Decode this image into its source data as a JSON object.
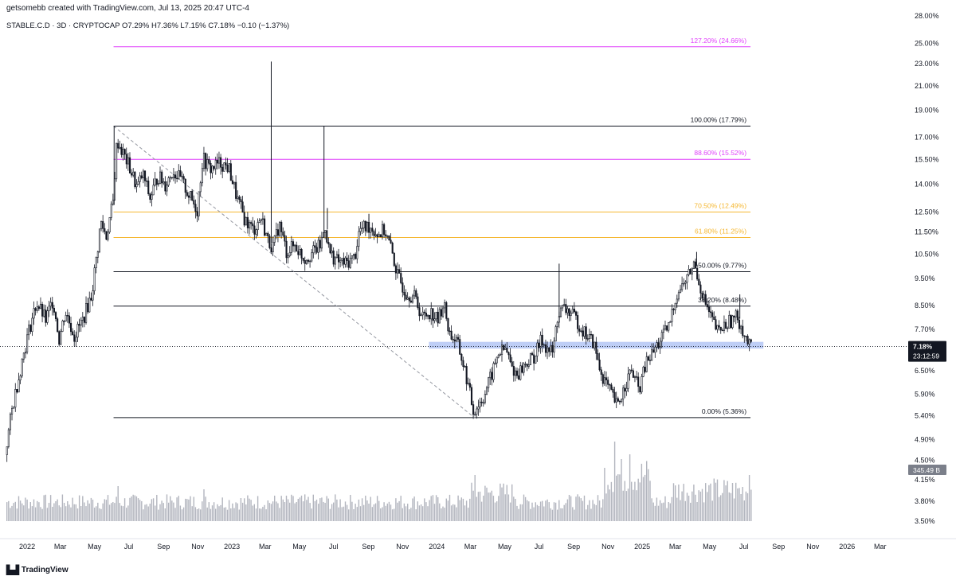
{
  "header": {
    "caption": "getsomebb created with TradingView.com, Jul 13, 2025 20:47 UTC-4",
    "symbol_line": "STABLE.C.D · 3D · CRYPTOCAP  O7.29%  H7.36%  L7.15%  C7.18%  −0.10 (−1.37%)"
  },
  "footer": {
    "brand": "TradingView"
  },
  "colors": {
    "candle": "#131722",
    "volume": "#b2b5be",
    "fib_black": "#131722",
    "fib_magenta": "#e040fb",
    "fib_orange": "#f5b731",
    "zone": "#b3c6f5",
    "price_badge_bg": "#131722",
    "volume_badge_bg": "#7b7f8a"
  },
  "price_badge": {
    "value": "7.18%",
    "countdown": "23:12:59"
  },
  "volume_badge": {
    "value": "345.49 B"
  },
  "chart_data": {
    "type": "candlestick",
    "symbol": "STABLE.C.D",
    "timeframe": "3D",
    "exchange": "CRYPTOCAP",
    "y_scale": "log",
    "ylim": [
      3.5,
      28
    ],
    "x_range": [
      "2021-11-25",
      "2026-04-20"
    ],
    "y_ticks": [
      "28.00%",
      "25.00%",
      "23.00%",
      "21.00%",
      "19.00%",
      "17.00%",
      "15.50%",
      "14.00%",
      "12.50%",
      "11.50%",
      "10.50%",
      "9.50%",
      "8.50%",
      "7.70%",
      "6.50%",
      "5.90%",
      "5.40%",
      "4.90%",
      "4.50%",
      "4.15%",
      "3.80%",
      "3.50%"
    ],
    "y_tick_values": [
      28,
      25,
      23,
      21,
      19,
      17,
      15.5,
      14,
      12.5,
      11.5,
      10.5,
      9.5,
      8.5,
      7.7,
      6.5,
      5.9,
      5.4,
      4.9,
      4.5,
      4.15,
      3.8,
      3.5
    ],
    "x_ticks": [
      {
        "label": "2022",
        "date": "2022-01-01"
      },
      {
        "label": "Mar",
        "date": "2022-03-01"
      },
      {
        "label": "May",
        "date": "2022-05-01"
      },
      {
        "label": "Jul",
        "date": "2022-07-01"
      },
      {
        "label": "Sep",
        "date": "2022-09-01"
      },
      {
        "label": "Nov",
        "date": "2022-11-01"
      },
      {
        "label": "2023",
        "date": "2023-01-01"
      },
      {
        "label": "Mar",
        "date": "2023-03-01"
      },
      {
        "label": "May",
        "date": "2023-05-01"
      },
      {
        "label": "Jul",
        "date": "2023-07-01"
      },
      {
        "label": "Sep",
        "date": "2023-09-01"
      },
      {
        "label": "Nov",
        "date": "2023-11-01"
      },
      {
        "label": "2024",
        "date": "2024-01-01"
      },
      {
        "label": "Mar",
        "date": "2024-03-01"
      },
      {
        "label": "May",
        "date": "2024-05-01"
      },
      {
        "label": "Jul",
        "date": "2024-07-01"
      },
      {
        "label": "Sep",
        "date": "2024-09-01"
      },
      {
        "label": "Nov",
        "date": "2024-11-01"
      },
      {
        "label": "2025",
        "date": "2025-01-01"
      },
      {
        "label": "Mar",
        "date": "2025-03-01"
      },
      {
        "label": "May",
        "date": "2025-05-01"
      },
      {
        "label": "Jul",
        "date": "2025-07-01"
      },
      {
        "label": "Sep",
        "date": "2025-09-01"
      },
      {
        "label": "Nov",
        "date": "2025-11-01"
      },
      {
        "label": "2026",
        "date": "2026-01-01"
      },
      {
        "label": "Mar",
        "date": "2026-03-01"
      }
    ],
    "fib_levels": [
      {
        "label": "127.20% (24.66%)",
        "value": 24.66,
        "color": "#e040fb"
      },
      {
        "label": "100.00% (17.79%)",
        "value": 17.79,
        "color": "#131722"
      },
      {
        "label": "88.60% (15.52%)",
        "value": 15.52,
        "color": "#e040fb"
      },
      {
        "label": "70.50% (12.49%)",
        "value": 12.49,
        "color": "#f5b731"
      },
      {
        "label": "61.80% (11.25%)",
        "value": 11.25,
        "color": "#f5b731"
      },
      {
        "label": "50.00% (9.77%)",
        "value": 9.77,
        "color": "#131722"
      },
      {
        "label": "38.20% (8.48%)",
        "value": 8.48,
        "color": "#131722"
      },
      {
        "label": "0.00% (5.36%)",
        "value": 5.36,
        "color": "#131722"
      }
    ],
    "fib_x_range": [
      "2022-06-04",
      "2025-07-13"
    ],
    "fib_label_x": "2025-07-13",
    "trend_line": {
      "from": {
        "date": "2022-06-04",
        "value": 17.79
      },
      "to": {
        "date": "2024-03-08",
        "value": 5.36
      }
    },
    "support_zone": {
      "from": "2023-12-18",
      "to": "2025-08-05",
      "low": 7.12,
      "high": 7.32
    },
    "current_price": 7.18,
    "price_anchors": [
      [
        "2021-11-25",
        4.6
      ],
      [
        "2021-12-08",
        5.6
      ],
      [
        "2021-12-20",
        6.4
      ],
      [
        "2022-01-05",
        7.6
      ],
      [
        "2022-01-20",
        8.6
      ],
      [
        "2022-02-05",
        8.0
      ],
      [
        "2022-02-18",
        8.7
      ],
      [
        "2022-03-01",
        7.4
      ],
      [
        "2022-03-12",
        8.3
      ],
      [
        "2022-03-28",
        7.5
      ],
      [
        "2022-04-12",
        8.0
      ],
      [
        "2022-04-28",
        8.9
      ],
      [
        "2022-05-08",
        10.6
      ],
      [
        "2022-05-14",
        12.0
      ],
      [
        "2022-05-24",
        11.3
      ],
      [
        "2022-06-05",
        13.0
      ],
      [
        "2022-06-12",
        16.8
      ],
      [
        "2022-06-19",
        16.2
      ],
      [
        "2022-07-02",
        15.2
      ],
      [
        "2022-07-18",
        13.8
      ],
      [
        "2022-07-28",
        14.6
      ],
      [
        "2022-08-10",
        13.2
      ],
      [
        "2022-08-24",
        14.5
      ],
      [
        "2022-09-06",
        14.0
      ],
      [
        "2022-09-20",
        14.8
      ],
      [
        "2022-10-05",
        14.2
      ],
      [
        "2022-10-18",
        13.4
      ],
      [
        "2022-11-02",
        12.6
      ],
      [
        "2022-11-12",
        15.6
      ],
      [
        "2022-11-25",
        14.9
      ],
      [
        "2022-12-12",
        15.3
      ],
      [
        "2022-12-28",
        15.0
      ],
      [
        "2023-01-12",
        13.2
      ],
      [
        "2023-01-26",
        12.1
      ],
      [
        "2023-02-10",
        11.6
      ],
      [
        "2023-02-24",
        12.2
      ],
      [
        "2023-03-08",
        11.1
      ],
      [
        "2023-03-18",
        10.8
      ],
      [
        "2023-03-28",
        11.9
      ],
      [
        "2023-04-10",
        10.6
      ],
      [
        "2023-04-25",
        10.9
      ],
      [
        "2023-05-12",
        10.3
      ],
      [
        "2023-05-28",
        10.6
      ],
      [
        "2023-06-10",
        10.9
      ],
      [
        "2023-06-18",
        11.8
      ],
      [
        "2023-06-25",
        10.6
      ],
      [
        "2023-07-10",
        10.2
      ],
      [
        "2023-07-25",
        10.1
      ],
      [
        "2023-08-10",
        10.4
      ],
      [
        "2023-08-18",
        11.6
      ],
      [
        "2023-09-05",
        11.8
      ],
      [
        "2023-09-20",
        11.4
      ],
      [
        "2023-10-02",
        11.6
      ],
      [
        "2023-10-15",
        10.6
      ],
      [
        "2023-10-25",
        9.6
      ],
      [
        "2023-11-08",
        9.0
      ],
      [
        "2023-11-25",
        8.8
      ],
      [
        "2023-12-08",
        8.1
      ],
      [
        "2023-12-22",
        8.3
      ],
      [
        "2024-01-05",
        8.0
      ],
      [
        "2024-01-15",
        8.6
      ],
      [
        "2024-01-25",
        7.6
      ],
      [
        "2024-02-08",
        7.3
      ],
      [
        "2024-02-22",
        6.5
      ],
      [
        "2024-03-02",
        5.9
      ],
      [
        "2024-03-08",
        5.5
      ],
      [
        "2024-03-25",
        5.8
      ],
      [
        "2024-04-10",
        6.4
      ],
      [
        "2024-04-22",
        7.0
      ],
      [
        "2024-05-05",
        7.1
      ],
      [
        "2024-05-15",
        6.6
      ],
      [
        "2024-05-25",
        6.4
      ],
      [
        "2024-06-10",
        6.7
      ],
      [
        "2024-06-25",
        6.9
      ],
      [
        "2024-07-08",
        7.4
      ],
      [
        "2024-07-18",
        7.1
      ],
      [
        "2024-07-28",
        7.0
      ],
      [
        "2024-08-05",
        8.1
      ],
      [
        "2024-08-15",
        8.4
      ],
      [
        "2024-08-25",
        8.3
      ],
      [
        "2024-09-08",
        8.0
      ],
      [
        "2024-09-22",
        7.6
      ],
      [
        "2024-10-08",
        7.3
      ],
      [
        "2024-10-20",
        6.5
      ],
      [
        "2024-11-05",
        6.0
      ],
      [
        "2024-11-20",
        5.6
      ],
      [
        "2024-12-05",
        6.2
      ],
      [
        "2024-12-15",
        6.5
      ],
      [
        "2024-12-28",
        6.0
      ],
      [
        "2025-01-10",
        6.7
      ],
      [
        "2025-01-22",
        7.0
      ],
      [
        "2025-02-05",
        7.4
      ],
      [
        "2025-02-20",
        7.8
      ],
      [
        "2025-03-05",
        8.9
      ],
      [
        "2025-03-18",
        9.3
      ],
      [
        "2025-03-28",
        9.7
      ],
      [
        "2025-04-06",
        10.1
      ],
      [
        "2025-04-15",
        9.3
      ],
      [
        "2025-04-25",
        8.6
      ],
      [
        "2025-05-05",
        8.1
      ],
      [
        "2025-05-18",
        7.6
      ],
      [
        "2025-05-28",
        7.8
      ],
      [
        "2025-06-10",
        8.0
      ],
      [
        "2025-06-22",
        8.1
      ],
      [
        "2025-07-05",
        7.5
      ],
      [
        "2025-07-13",
        7.18
      ]
    ],
    "spikes": [
      {
        "date": "2022-06-04",
        "value": 17.79
      },
      {
        "date": "2023-03-11",
        "value": 23.2
      },
      {
        "date": "2023-06-13",
        "value": 17.79
      },
      {
        "date": "2023-06-19",
        "value": 12.7
      },
      {
        "date": "2023-09-01",
        "value": 12.4
      },
      {
        "date": "2024-08-05",
        "value": 10.1
      },
      {
        "date": "2025-04-07",
        "value": 10.6
      },
      {
        "date": "2025-06-23",
        "value": 8.9
      }
    ],
    "volume": {
      "last_value": "345.49 B",
      "baseline_relative": 0.65,
      "elevated_ranges": [
        {
          "from": "2024-03-01",
          "to": "2024-05-20",
          "relative": 0.95
        },
        {
          "from": "2024-10-25",
          "to": "2025-01-15",
          "relative": 1.55
        },
        {
          "from": "2025-02-20",
          "to": "2025-07-13",
          "relative": 1.05
        }
      ],
      "peaks": [
        {
          "date": "2022-06-10",
          "relative": 1.1
        },
        {
          "date": "2022-11-10",
          "relative": 1.0
        },
        {
          "date": "2024-03-08",
          "relative": 1.45
        },
        {
          "date": "2024-11-12",
          "relative": 2.5
        },
        {
          "date": "2024-12-10",
          "relative": 2.1
        },
        {
          "date": "2025-07-09",
          "relative": 1.45
        }
      ]
    }
  }
}
